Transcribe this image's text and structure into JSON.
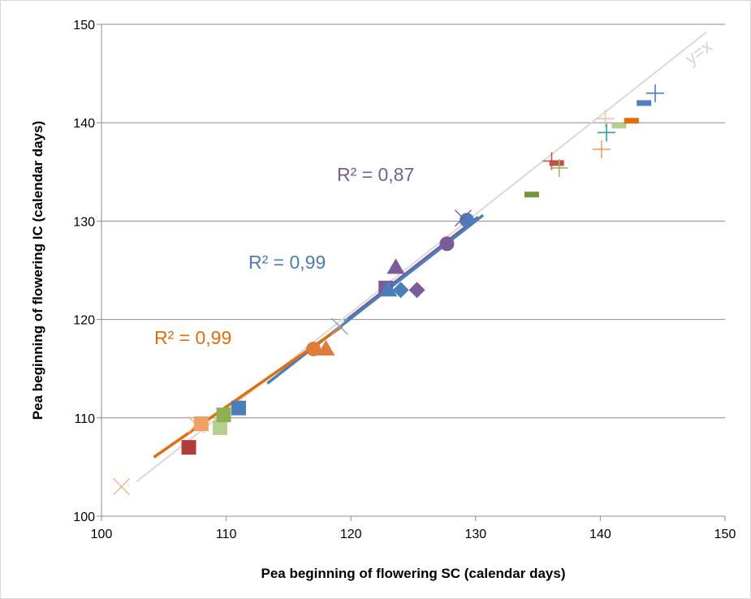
{
  "chart_data": {
    "type": "scatter",
    "xlabel": "Pea beginning of flowering SC (calendar days)",
    "ylabel": "Pea beginning of flowering IC (calendar days)",
    "xlim": [
      100,
      150
    ],
    "ylim": [
      100,
      150
    ],
    "xticks": [
      "100",
      "110",
      "120",
      "130",
      "140",
      "150"
    ],
    "yticks": [
      "100",
      "110",
      "120",
      "130",
      "140",
      "150"
    ],
    "grid": "horizontal",
    "legend": "none",
    "identity_line": {
      "label": "y=x",
      "x": [
        102.8,
        148.5
      ],
      "y": [
        103.5,
        149.2
      ],
      "color": "#d9d9d9"
    },
    "trendlines": [
      {
        "label": "R² = 0,87",
        "color": "#7a5c9b",
        "x": [
          119.5,
          130.2
        ],
        "y": [
          119.8,
          130.4
        ]
      },
      {
        "label": "R² = 0,99",
        "color": "#4a7ebb",
        "x": [
          113.3,
          130.6
        ],
        "y": [
          113.5,
          130.6
        ]
      },
      {
        "label": "R² = 0,99",
        "color": "#e46c0a",
        "x": [
          104.2,
          119.3
        ],
        "y": [
          106.0,
          119.3
        ]
      }
    ],
    "points": [
      {
        "x": 101.6,
        "y": 103.0,
        "marker": "x",
        "color": "#f2b48a"
      },
      {
        "x": 107.0,
        "y": 107.0,
        "marker": "square",
        "color": "#b23c3c"
      },
      {
        "x": 107.6,
        "y": 109.3,
        "marker": "x",
        "color": "#f2b48a"
      },
      {
        "x": 108.0,
        "y": 109.4,
        "marker": "square",
        "color": "#f0a060"
      },
      {
        "x": 109.5,
        "y": 109.0,
        "marker": "square",
        "color": "#b5cf8c"
      },
      {
        "x": 109.8,
        "y": 110.3,
        "marker": "square",
        "color": "#8db050"
      },
      {
        "x": 111.0,
        "y": 111.0,
        "marker": "square",
        "color": "#4a7ebb"
      },
      {
        "x": 117.0,
        "y": 117.0,
        "marker": "circle",
        "color": "#e07b39"
      },
      {
        "x": 118.0,
        "y": 117.0,
        "marker": "triangle",
        "color": "#e07b39"
      },
      {
        "x": 119.1,
        "y": 119.3,
        "marker": "x",
        "color": "#8c9fc0"
      },
      {
        "x": 122.8,
        "y": 123.2,
        "marker": "square",
        "color": "#7a5c9b"
      },
      {
        "x": 123.0,
        "y": 123.0,
        "marker": "triangle",
        "color": "#4a7ebb"
      },
      {
        "x": 123.6,
        "y": 125.3,
        "marker": "triangle",
        "color": "#7a5c9b"
      },
      {
        "x": 124.0,
        "y": 123.0,
        "marker": "diamond",
        "color": "#4a7ebb"
      },
      {
        "x": 125.3,
        "y": 123.0,
        "marker": "diamond",
        "color": "#7a5c9b"
      },
      {
        "x": 127.7,
        "y": 127.7,
        "marker": "circle",
        "color": "#7a5c9b"
      },
      {
        "x": 129.3,
        "y": 130.1,
        "marker": "circle",
        "color": "#4a7ebb"
      },
      {
        "x": 129.0,
        "y": 130.3,
        "marker": "x",
        "color": "#7a5c9b"
      },
      {
        "x": 134.5,
        "y": 132.7,
        "marker": "dash",
        "color": "#77933c"
      },
      {
        "x": 136.1,
        "y": 136.1,
        "marker": "plus",
        "color": "#c0504d"
      },
      {
        "x": 136.5,
        "y": 135.9,
        "marker": "dash",
        "color": "#c0504d"
      },
      {
        "x": 136.7,
        "y": 135.4,
        "marker": "plus",
        "color": "#9bbb59"
      },
      {
        "x": 140.1,
        "y": 137.3,
        "marker": "plus",
        "color": "#f0a060"
      },
      {
        "x": 140.4,
        "y": 140.4,
        "marker": "plus",
        "color": "#e9c7a5"
      },
      {
        "x": 140.5,
        "y": 139.0,
        "marker": "plus",
        "color": "#31a0a0"
      },
      {
        "x": 141.5,
        "y": 139.7,
        "marker": "dash",
        "color": "#b5cf8c"
      },
      {
        "x": 142.5,
        "y": 140.2,
        "marker": "dash",
        "color": "#e46c0a"
      },
      {
        "x": 143.5,
        "y": 142.0,
        "marker": "dash",
        "color": "#4f81bd"
      },
      {
        "x": 144.4,
        "y": 143.0,
        "marker": "plus",
        "color": "#4a7ebb"
      }
    ]
  }
}
